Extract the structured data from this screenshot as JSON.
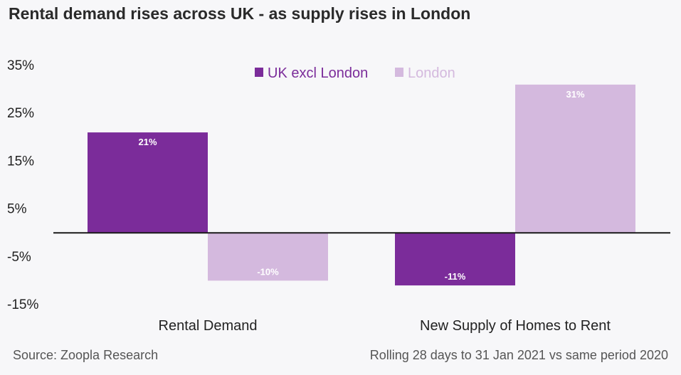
{
  "title": "Rental demand rises across UK - as supply rises in London",
  "source": "Source: Zoopla Research",
  "note": "Rolling 28 days to 31 Jan 2021 vs same period 2020",
  "colors": {
    "uk": "#7b2c9a",
    "london": "#d4b9de",
    "axis": "#1a1a1a",
    "text": "#222222"
  },
  "chart_data": {
    "type": "bar",
    "categories": [
      "Rental Demand",
      "New Supply of Homes to Rent"
    ],
    "series": [
      {
        "name": "UK excl London",
        "values": [
          21,
          -11
        ],
        "labels": [
          "21%",
          "-11%"
        ]
      },
      {
        "name": "London",
        "values": [
          -10,
          31
        ],
        "labels": [
          "-10%",
          "31%"
        ]
      }
    ],
    "ylim": [
      -15,
      35
    ],
    "yticks": [
      35,
      25,
      15,
      5,
      -5,
      -15
    ],
    "ytick_labels": [
      "35%",
      "25%",
      "15%",
      "5%",
      "-5%",
      "-15%"
    ],
    "legend_position": "top-center",
    "grid": false
  }
}
